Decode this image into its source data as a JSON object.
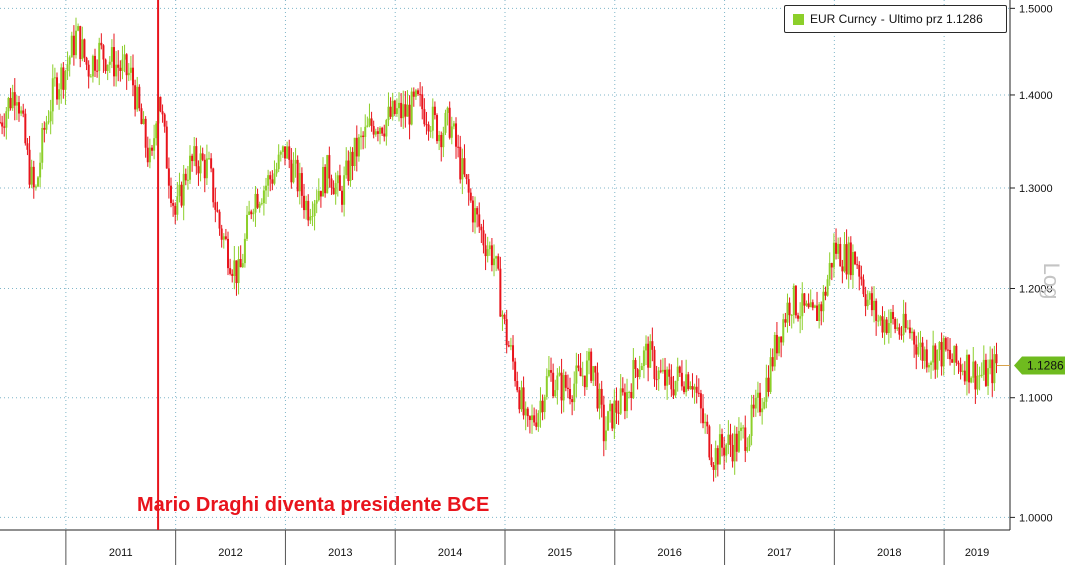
{
  "chart_data": {
    "type": "candlestick",
    "scale": "log",
    "ylim": [
      0.99,
      1.51
    ],
    "yticks": [
      1.0,
      1.1,
      1.2,
      1.3,
      1.4,
      1.5
    ],
    "ytick_labels": [
      "1.0000",
      "1.1000",
      "1.2000",
      "1.3000",
      "1.4000",
      "1.5000"
    ],
    "x_range": [
      2010.4,
      2019.6
    ],
    "year_labels": [
      "2011",
      "2012",
      "2013",
      "2014",
      "2015",
      "2016",
      "2017",
      "2018",
      "2019"
    ],
    "legend": {
      "series": "EUR Curncy",
      "separator": "-",
      "field": "Ultimo prz",
      "value": "1.1286"
    },
    "last_price": "1.1286",
    "axis_scale_label": "Log",
    "annotation": {
      "text": "Mario Draghi diventa presidente BCE",
      "date": 2011.84
    },
    "colors": {
      "up": "#8ccf2a",
      "down": "#e8141c",
      "line": "#e8141c",
      "grid": "#7fb6c9",
      "axis": "#222222"
    },
    "series": [
      {
        "name": "EUR Curncy",
        "points": [
          [
            2010.4,
            1.37
          ],
          [
            2010.55,
            1.41
          ],
          [
            2010.65,
            1.33
          ],
          [
            2010.72,
            1.29
          ],
          [
            2010.8,
            1.36
          ],
          [
            2010.9,
            1.41
          ],
          [
            2011.0,
            1.43
          ],
          [
            2011.1,
            1.47
          ],
          [
            2011.2,
            1.43
          ],
          [
            2011.3,
            1.45
          ],
          [
            2011.4,
            1.44
          ],
          [
            2011.5,
            1.43
          ],
          [
            2011.6,
            1.42
          ],
          [
            2011.7,
            1.36
          ],
          [
            2011.78,
            1.32
          ],
          [
            2011.84,
            1.41
          ],
          [
            2011.92,
            1.33
          ],
          [
            2012.0,
            1.27
          ],
          [
            2012.1,
            1.32
          ],
          [
            2012.2,
            1.33
          ],
          [
            2012.3,
            1.32
          ],
          [
            2012.4,
            1.26
          ],
          [
            2012.5,
            1.23
          ],
          [
            2012.58,
            1.21
          ],
          [
            2012.7,
            1.29
          ],
          [
            2012.8,
            1.3
          ],
          [
            2012.92,
            1.32
          ],
          [
            2013.0,
            1.34
          ],
          [
            2013.1,
            1.31
          ],
          [
            2013.2,
            1.28
          ],
          [
            2013.3,
            1.3
          ],
          [
            2013.4,
            1.32
          ],
          [
            2013.5,
            1.29
          ],
          [
            2013.6,
            1.33
          ],
          [
            2013.7,
            1.35
          ],
          [
            2013.8,
            1.37
          ],
          [
            2013.9,
            1.37
          ],
          [
            2014.0,
            1.38
          ],
          [
            2014.1,
            1.38
          ],
          [
            2014.2,
            1.39
          ],
          [
            2014.3,
            1.38
          ],
          [
            2014.4,
            1.36
          ],
          [
            2014.5,
            1.37
          ],
          [
            2014.6,
            1.32
          ],
          [
            2014.7,
            1.28
          ],
          [
            2014.8,
            1.25
          ],
          [
            2014.9,
            1.23
          ],
          [
            2015.0,
            1.16
          ],
          [
            2015.1,
            1.12
          ],
          [
            2015.2,
            1.07
          ],
          [
            2015.3,
            1.09
          ],
          [
            2015.4,
            1.12
          ],
          [
            2015.5,
            1.11
          ],
          [
            2015.6,
            1.11
          ],
          [
            2015.7,
            1.12
          ],
          [
            2015.8,
            1.13
          ],
          [
            2015.9,
            1.07
          ],
          [
            2016.0,
            1.09
          ],
          [
            2016.1,
            1.1
          ],
          [
            2016.2,
            1.13
          ],
          [
            2016.3,
            1.14
          ],
          [
            2016.4,
            1.12
          ],
          [
            2016.5,
            1.11
          ],
          [
            2016.6,
            1.12
          ],
          [
            2016.7,
            1.12
          ],
          [
            2016.8,
            1.08
          ],
          [
            2016.9,
            1.05
          ],
          [
            2017.0,
            1.06
          ],
          [
            2017.1,
            1.06
          ],
          [
            2017.2,
            1.07
          ],
          [
            2017.3,
            1.09
          ],
          [
            2017.4,
            1.12
          ],
          [
            2017.5,
            1.16
          ],
          [
            2017.6,
            1.19
          ],
          [
            2017.7,
            1.18
          ],
          [
            2017.8,
            1.17
          ],
          [
            2017.9,
            1.19
          ],
          [
            2018.0,
            1.24
          ],
          [
            2018.1,
            1.23
          ],
          [
            2018.2,
            1.23
          ],
          [
            2018.3,
            1.19
          ],
          [
            2018.4,
            1.17
          ],
          [
            2018.5,
            1.17
          ],
          [
            2018.6,
            1.16
          ],
          [
            2018.7,
            1.16
          ],
          [
            2018.8,
            1.14
          ],
          [
            2018.9,
            1.14
          ],
          [
            2019.0,
            1.14
          ],
          [
            2019.1,
            1.13
          ],
          [
            2019.2,
            1.13
          ],
          [
            2019.3,
            1.12
          ],
          [
            2019.4,
            1.12
          ],
          [
            2019.48,
            1.13
          ]
        ]
      }
    ]
  }
}
